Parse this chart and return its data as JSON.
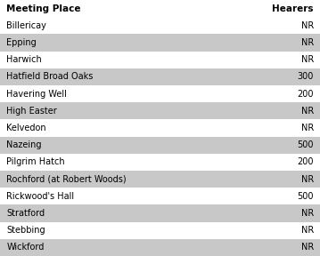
{
  "header": [
    "Meeting Place",
    "Hearers"
  ],
  "rows": [
    [
      "Billericay",
      "NR"
    ],
    [
      "Epping",
      "NR"
    ],
    [
      "Harwich",
      "NR"
    ],
    [
      "Hatfield Broad Oaks",
      "300"
    ],
    [
      "Havering Well",
      "200"
    ],
    [
      "High Easter",
      "NR"
    ],
    [
      "Kelvedon",
      "NR"
    ],
    [
      "Nazeing",
      "500"
    ],
    [
      "Pilgrim Hatch",
      "200"
    ],
    [
      "Rochford (at Robert Woods)",
      "NR"
    ],
    [
      "Rickwood's Hall",
      "500"
    ],
    [
      "Stratford",
      "NR"
    ],
    [
      "Stebbing",
      "NR"
    ],
    [
      "Wickford",
      "NR"
    ]
  ],
  "shaded_rows": [
    1,
    3,
    5,
    7,
    9,
    11,
    13
  ],
  "bg_color": "#ffffff",
  "shade_color": "#c8c8c8",
  "header_bg": "#ffffff",
  "text_color": "#000000",
  "header_fontsize": 7.5,
  "row_fontsize": 7.0,
  "fig_width": 3.59,
  "fig_height": 2.88,
  "dpi": 100
}
